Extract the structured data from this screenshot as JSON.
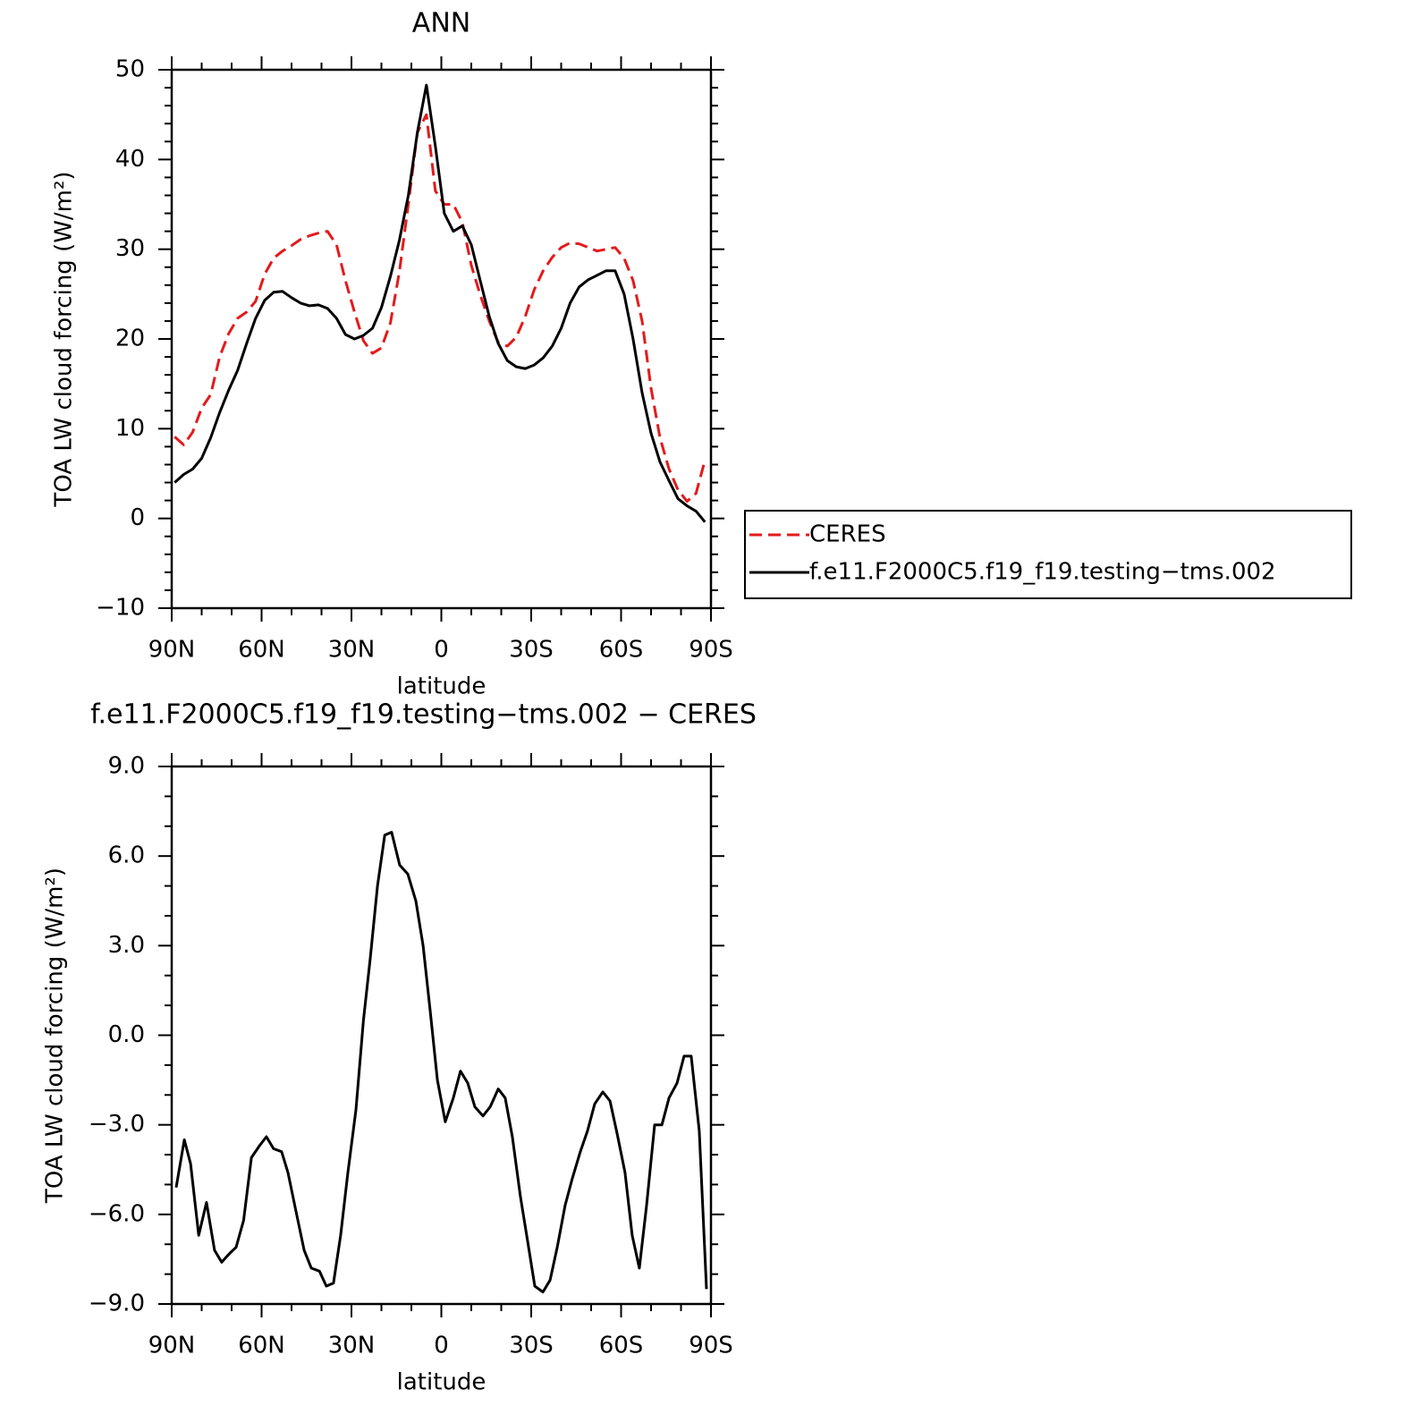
{
  "chart_data": [
    {
      "type": "line",
      "title": "ANN",
      "xlabel": "latitude",
      "ylabel": "TOA LW cloud forcing (W/m²)",
      "x": [
        89,
        86,
        83,
        80,
        77,
        74,
        71,
        68,
        65,
        62,
        59,
        56,
        53,
        50,
        47,
        44,
        41,
        38,
        35,
        32,
        29,
        26,
        23,
        20,
        17,
        14,
        11,
        8,
        5,
        2,
        -1,
        -4,
        -7,
        -10,
        -13,
        -16,
        -19,
        -22,
        -25,
        -28,
        -31,
        -34,
        -37,
        -40,
        -43,
        -46,
        -49,
        -52,
        -55,
        -58,
        -61,
        -64,
        -67,
        -70,
        -73,
        -76,
        -79,
        -82,
        -85,
        -88
      ],
      "series": [
        {
          "name": "CERES",
          "color": "#e41a1c",
          "dash": true,
          "values": [
            9.1,
            8.2,
            9.6,
            12.3,
            13.8,
            18.0,
            20.6,
            22.3,
            23.0,
            24.2,
            27.2,
            29.0,
            29.8,
            30.4,
            31.1,
            31.5,
            31.8,
            32.0,
            30.5,
            26.5,
            23.0,
            19.8,
            18.4,
            19.0,
            21.8,
            27.5,
            35.0,
            43.0,
            45.0,
            36.5,
            35.0,
            35.0,
            33.0,
            28.2,
            24.9,
            22.0,
            19.6,
            19.2,
            20.2,
            22.5,
            25.5,
            27.6,
            29.1,
            30.2,
            30.7,
            30.6,
            30.2,
            29.8,
            30.0,
            30.2,
            29.0,
            26.5,
            22.0,
            14.5,
            9.0,
            5.5,
            3.2,
            1.9,
            2.8,
            6.5
          ]
        },
        {
          "name": "f.e11.F2000C5.f19_f19.testing−tms.002",
          "color": "#000000",
          "dash": false,
          "values": [
            4.0,
            4.9,
            5.5,
            6.7,
            9.0,
            11.8,
            14.3,
            16.5,
            19.5,
            22.3,
            24.3,
            25.2,
            25.3,
            24.6,
            24.0,
            23.7,
            23.8,
            23.4,
            22.3,
            20.5,
            20.0,
            20.4,
            21.2,
            23.5,
            27.0,
            31.0,
            36.0,
            43.0,
            48.3,
            41.5,
            34.0,
            32.0,
            32.6,
            30.5,
            26.5,
            22.5,
            19.5,
            17.6,
            16.9,
            16.7,
            17.1,
            17.9,
            19.2,
            21.2,
            24.0,
            25.8,
            26.6,
            27.1,
            27.6,
            27.6,
            25.0,
            20.0,
            14.0,
            9.5,
            6.3,
            4.2,
            2.2,
            1.4,
            0.8,
            -0.4
          ]
        }
      ],
      "xlim": [
        90,
        -90
      ],
      "xticks": [
        {
          "value": 90,
          "label": "90N"
        },
        {
          "value": 60,
          "label": "60N"
        },
        {
          "value": 30,
          "label": "30N"
        },
        0,
        {
          "value": -30,
          "label": "30S"
        },
        {
          "value": -60,
          "label": "60S"
        },
        {
          "value": -90,
          "label": "90S"
        }
      ],
      "xminorticks": [
        80,
        70,
        50,
        40,
        20,
        10,
        -10,
        -20,
        -40,
        -50,
        -70,
        -80
      ],
      "ylim": [
        -10,
        50
      ],
      "yticks": [
        {
          "value": -10,
          "label": "−10"
        },
        0,
        10,
        20,
        30,
        40,
        50
      ],
      "yminorticks": [
        -8,
        -6,
        -4,
        -2,
        2,
        4,
        6,
        8,
        12,
        14,
        16,
        18,
        22,
        24,
        26,
        28,
        32,
        34,
        36,
        38,
        42,
        44,
        46,
        48
      ],
      "legend": "right"
    },
    {
      "type": "line",
      "title": "f.e11.F2000C5.f19_f19.testing−tms.002 − CERES",
      "xlabel": "latitude",
      "ylabel": "TOA LW cloud forcing (W/m²)",
      "x": [
        88.5,
        85.8,
        83.7,
        81,
        78.4,
        75.7,
        73.3,
        70.6,
        68.5,
        66,
        63.4,
        60.7,
        58.4,
        56,
        53.3,
        51.2,
        48.5,
        45.8,
        43.4,
        40.7,
        38.4,
        36,
        33.6,
        31.2,
        28.5,
        26,
        23.7,
        21.3,
        18.9,
        16.6,
        13.9,
        11.2,
        8.5,
        6.1,
        3.7,
        1.3,
        -1.3,
        -4,
        -6.4,
        -8.8,
        -11.2,
        -13.9,
        -16.3,
        -19,
        -21.3,
        -23.7,
        -26.4,
        -28.8,
        -31.2,
        -33.9,
        -36.3,
        -38.7,
        -41.3,
        -43.7,
        -46.4,
        -48.8,
        -51.2,
        -53.9,
        -56.3,
        -58.7,
        -61.3,
        -63.7,
        -66.1,
        -68.5,
        -71.2,
        -73.6,
        -76,
        -78.7,
        -81,
        -83.4,
        -86.1,
        -88.5
      ],
      "series": [
        {
          "name": "f.e11.F2000C5.f19_f19.testing−tms.002 − CERES",
          "color": "#000000",
          "dash": false,
          "values": [
            -5.1,
            -3.5,
            -4.3,
            -6.7,
            -5.6,
            -7.2,
            -7.6,
            -7.3,
            -7.1,
            -6.2,
            -4.1,
            -3.7,
            -3.4,
            -3.8,
            -3.9,
            -4.6,
            -5.9,
            -7.2,
            -7.8,
            -7.9,
            -8.4,
            -8.3,
            -6.7,
            -4.6,
            -2.5,
            0.5,
            2.6,
            5.0,
            6.7,
            6.8,
            5.7,
            5.4,
            4.5,
            3.0,
            0.8,
            -1.5,
            -2.9,
            -2.1,
            -1.2,
            -1.6,
            -2.4,
            -2.7,
            -2.4,
            -1.8,
            -2.1,
            -3.4,
            -5.4,
            -6.9,
            -8.4,
            -8.6,
            -8.2,
            -7.1,
            -5.7,
            -4.8,
            -3.9,
            -3.2,
            -2.3,
            -1.9,
            -2.2,
            -3.3,
            -4.6,
            -6.7,
            -7.8,
            -5.7,
            -3.0,
            -3.0,
            -2.1,
            -1.6,
            -0.7,
            -0.7,
            -3.2,
            -8.5
          ]
        }
      ],
      "xlim": [
        90,
        -90
      ],
      "xticks": [
        {
          "value": 90,
          "label": "90N"
        },
        {
          "value": 60,
          "label": "60N"
        },
        {
          "value": 30,
          "label": "30N"
        },
        0,
        {
          "value": -30,
          "label": "30S"
        },
        {
          "value": -60,
          "label": "60S"
        },
        {
          "value": -90,
          "label": "90S"
        }
      ],
      "xminorticks": [
        80,
        70,
        50,
        40,
        20,
        10,
        -10,
        -20,
        -40,
        -50,
        -70,
        -80
      ],
      "ylim": [
        -9,
        9
      ],
      "yticks": [
        {
          "value": -9,
          "label": "−9.0"
        },
        {
          "value": -6,
          "label": "−6.0"
        },
        {
          "value": -3,
          "label": "−3.0"
        },
        {
          "value": 0,
          "label": "0.0"
        },
        {
          "value": 3,
          "label": "3.0"
        },
        {
          "value": 6,
          "label": "6.0"
        },
        {
          "value": 9,
          "label": "9.0"
        }
      ],
      "yminorticks": [
        -8,
        -7,
        -5,
        -4,
        -2,
        -1,
        1,
        2,
        4,
        5,
        7,
        8
      ]
    }
  ]
}
